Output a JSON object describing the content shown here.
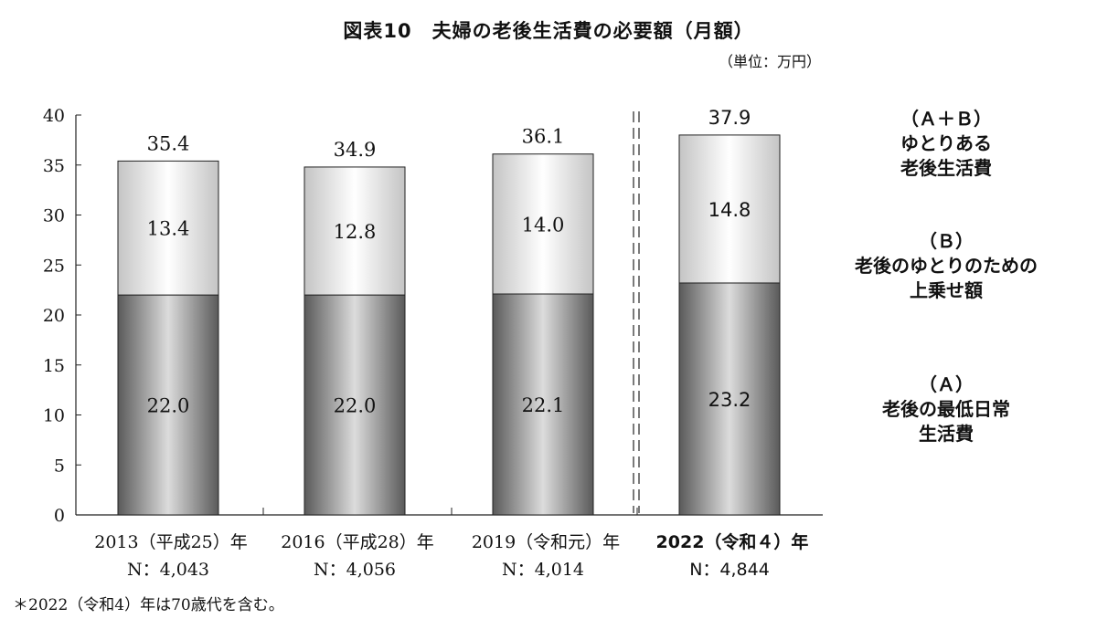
{
  "chart_data": {
    "type": "bar",
    "stacked": true,
    "title": "図表10　夫婦の老後生活費の必要額（月額）",
    "unit": "（単位：万円）",
    "categories": [
      "2013（平成25）年",
      "2016（平成28）年",
      "2019（令和元）年",
      "2022（令和４）年"
    ],
    "sample_sizes": [
      "N：4,043",
      "N：4,056",
      "N：4,014",
      "N：4,844"
    ],
    "series": [
      {
        "key": "A",
        "values": [
          22.0,
          22.0,
          22.1,
          23.2
        ],
        "color": "#8a8a8a"
      },
      {
        "key": "B",
        "values": [
          13.4,
          12.8,
          14.0,
          14.8
        ],
        "color": "#e6e6e6"
      }
    ],
    "totals": [
      35.4,
      34.9,
      36.1,
      37.9
    ],
    "ylim": [
      0,
      40
    ],
    "yticks": [
      0,
      5,
      10,
      15,
      20,
      25,
      30,
      35,
      40
    ],
    "grid": false,
    "legend_position": "right",
    "legend": [
      {
        "lines": [
          "（Ａ＋Ｂ）",
          "ゆとりある",
          "老後生活費"
        ]
      },
      {
        "lines": [
          "（Ｂ）",
          "老後のゆとりのための",
          "上乗せ額"
        ]
      },
      {
        "lines": [
          "（Ａ）",
          "老後の最低日常",
          "生活費"
        ]
      }
    ]
  },
  "footnote": "＊2022（令和4）年は70歳代を含む。"
}
